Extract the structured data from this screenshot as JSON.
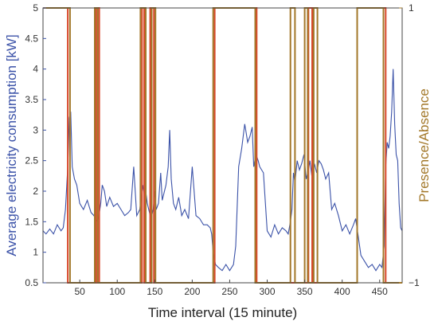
{
  "chart_data": {
    "type": "line",
    "title": "",
    "xlabel": "Time interval (15 minute)",
    "ylabel_left": "Average electricity consumption [kW]",
    "ylabel_right": "Presence/Absence",
    "xlim": [
      1,
      480
    ],
    "ylim_left": [
      0.5,
      5
    ],
    "ylim_right": [
      -1,
      1
    ],
    "x_ticks": [
      50,
      100,
      150,
      200,
      250,
      300,
      350,
      400,
      450
    ],
    "y_left_ticks": [
      0.5,
      1,
      1.5,
      2,
      2.5,
      3,
      3.5,
      4,
      4.5,
      5
    ],
    "y_right_ticks": [
      -1,
      1
    ],
    "grid": false,
    "colors": {
      "consumption": "#3b52a8",
      "presence_red": "#d9482b",
      "presence_olive": "#a3782a",
      "left_axis": "#3b52a8",
      "right_axis": "#a3782a"
    },
    "series": [
      {
        "name": "",
        "axis": "left",
        "color": "#3b52a8",
        "x": [
          1,
          5,
          10,
          15,
          20,
          25,
          28,
          31,
          34,
          36,
          38,
          40,
          43,
          46,
          50,
          55,
          60,
          65,
          69,
          72,
          75,
          78,
          80,
          83,
          86,
          90,
          95,
          100,
          105,
          110,
          115,
          118,
          122,
          126,
          130,
          132,
          134,
          136,
          138,
          140,
          142,
          145,
          148,
          150,
          152,
          155,
          158,
          160,
          165,
          168,
          170,
          172,
          175,
          178,
          182,
          186,
          190,
          195,
          200,
          205,
          210,
          215,
          220,
          224,
          226,
          228,
          231,
          235,
          240,
          245,
          250,
          255,
          258,
          262,
          266,
          270,
          272,
          274,
          277,
          280,
          282,
          285,
          288,
          290,
          295,
          300,
          305,
          310,
          315,
          320,
          325,
          328,
          331,
          333,
          335,
          337,
          340,
          343,
          346,
          349,
          352,
          355,
          357,
          360,
          363,
          366,
          369,
          372,
          375,
          378,
          382,
          386,
          390,
          395,
          400,
          405,
          410,
          415,
          418,
          421,
          425,
          430,
          435,
          440,
          445,
          450,
          453,
          456,
          458,
          460,
          462,
          464,
          466,
          468,
          470,
          472,
          474,
          476,
          478,
          480
        ],
        "y": [
          1.35,
          1.3,
          1.38,
          1.3,
          1.45,
          1.35,
          1.4,
          1.7,
          2.4,
          3.2,
          3.3,
          2.4,
          2.2,
          2.1,
          1.8,
          1.7,
          1.85,
          1.65,
          1.6,
          1.5,
          1.55,
          1.8,
          2.1,
          2.0,
          1.75,
          1.9,
          1.75,
          1.8,
          1.7,
          1.6,
          1.65,
          1.7,
          2.4,
          1.6,
          1.7,
          1.9,
          2.1,
          1.95,
          2.0,
          1.8,
          1.7,
          1.55,
          1.7,
          2.0,
          1.7,
          1.8,
          2.3,
          1.85,
          2.1,
          2.4,
          3.0,
          2.2,
          1.8,
          1.7,
          1.9,
          1.6,
          1.7,
          1.55,
          2.4,
          1.6,
          1.55,
          1.45,
          1.45,
          1.4,
          1.3,
          1.0,
          0.8,
          0.75,
          0.7,
          0.8,
          0.7,
          0.8,
          1.1,
          2.4,
          2.7,
          3.1,
          2.95,
          2.8,
          2.9,
          3.05,
          2.4,
          2.6,
          2.5,
          2.4,
          2.3,
          1.35,
          1.25,
          1.45,
          1.3,
          1.4,
          1.35,
          1.3,
          1.5,
          1.7,
          2.3,
          2.15,
          2.5,
          2.35,
          2.45,
          2.6,
          2.2,
          2.35,
          2.5,
          2.2,
          2.45,
          2.3,
          2.5,
          2.45,
          2.35,
          2.2,
          2.3,
          1.7,
          1.8,
          1.6,
          1.35,
          1.45,
          1.3,
          1.45,
          1.55,
          1.3,
          0.95,
          0.85,
          0.75,
          0.8,
          0.7,
          0.8,
          0.75,
          1.1,
          2.4,
          2.8,
          2.7,
          2.9,
          3.3,
          4.0,
          3.1,
          2.6,
          2.5,
          1.8,
          1.4,
          1.35
        ]
      },
      {
        "name": "",
        "axis": "right",
        "color": "#d9482b",
        "x": [
          1,
          34,
          34,
          72,
          72,
          76,
          76,
          133,
          133,
          136,
          136,
          144,
          144,
          149,
          149,
          230,
          230,
          286,
          286,
          355,
          355,
          360,
          360,
          420,
          420,
          458,
          458,
          480
        ],
        "y": [
          1,
          1,
          -1,
          -1,
          1,
          1,
          -1,
          -1,
          1,
          1,
          -1,
          -1,
          1,
          1,
          -1,
          -1,
          1,
          1,
          -1,
          -1,
          1,
          1,
          -1,
          -1,
          1,
          1,
          -1,
          -1
        ]
      },
      {
        "name": "",
        "axis": "right",
        "color": "#a3782a",
        "x": [
          1,
          37,
          37,
          70,
          70,
          74,
          74,
          131,
          131,
          138,
          138,
          146,
          146,
          151,
          151,
          228,
          228,
          284,
          284,
          331,
          331,
          337,
          337,
          350,
          350,
          354,
          354,
          362,
          362,
          367,
          367,
          420,
          420,
          455,
          455,
          480
        ],
        "y": [
          1,
          1,
          -1,
          -1,
          1,
          1,
          -1,
          -1,
          1,
          1,
          -1,
          -1,
          1,
          1,
          -1,
          -1,
          1,
          1,
          -1,
          -1,
          1,
          1,
          -1,
          -1,
          1,
          1,
          -1,
          -1,
          1,
          1,
          -1,
          -1,
          1,
          1,
          -1,
          -1
        ]
      }
    ]
  }
}
